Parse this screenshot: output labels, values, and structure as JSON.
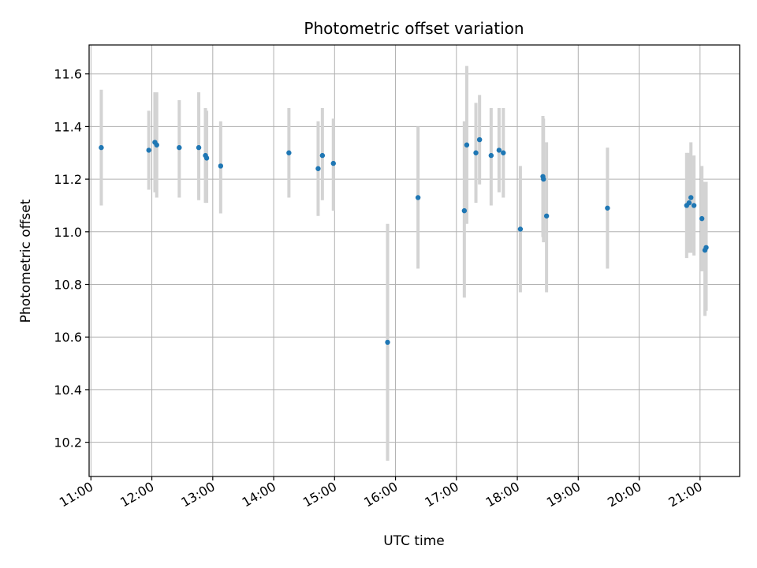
{
  "chart_data": {
    "type": "scatter",
    "title": "Photometric offset variation",
    "xlabel": "UTC time",
    "ylabel": "Photometric offset",
    "x_unit": "hour",
    "xlim": [
      10.97,
      21.65
    ],
    "ylim": [
      10.07,
      11.71
    ],
    "grid": true,
    "x_ticks": [
      {
        "value": 11,
        "label": "11:00"
      },
      {
        "value": 12,
        "label": "12:00"
      },
      {
        "value": 13,
        "label": "13:00"
      },
      {
        "value": 14,
        "label": "14:00"
      },
      {
        "value": 15,
        "label": "15:00"
      },
      {
        "value": 16,
        "label": "16:00"
      },
      {
        "value": 17,
        "label": "17:00"
      },
      {
        "value": 18,
        "label": "18:00"
      },
      {
        "value": 19,
        "label": "19:00"
      },
      {
        "value": 20,
        "label": "20:00"
      },
      {
        "value": 21,
        "label": "21:00"
      }
    ],
    "y_ticks": [
      {
        "value": 10.2,
        "label": "10.2"
      },
      {
        "value": 10.4,
        "label": "10.4"
      },
      {
        "value": 10.6,
        "label": "10.6"
      },
      {
        "value": 10.8,
        "label": "10.8"
      },
      {
        "value": 11.0,
        "label": "11.0"
      },
      {
        "value": 11.2,
        "label": "11.2"
      },
      {
        "value": 11.4,
        "label": "11.4"
      },
      {
        "value": 11.6,
        "label": "11.6"
      }
    ],
    "colors": {
      "point": "#1f77b4",
      "error_bar": "#d3d3d3",
      "grid": "#b0b0b0"
    },
    "points": [
      {
        "x": 11.17,
        "y": 11.32,
        "low": 11.1,
        "high": 11.54
      },
      {
        "x": 11.95,
        "y": 11.31,
        "low": 11.16,
        "high": 11.46
      },
      {
        "x": 12.05,
        "y": 11.34,
        "low": 11.15,
        "high": 11.53
      },
      {
        "x": 12.08,
        "y": 11.33,
        "low": 11.13,
        "high": 11.53
      },
      {
        "x": 12.45,
        "y": 11.32,
        "low": 11.13,
        "high": 11.5
      },
      {
        "x": 12.77,
        "y": 11.32,
        "low": 11.12,
        "high": 11.53
      },
      {
        "x": 12.88,
        "y": 11.29,
        "low": 11.11,
        "high": 11.47
      },
      {
        "x": 12.9,
        "y": 11.28,
        "low": 11.11,
        "high": 11.46
      },
      {
        "x": 13.13,
        "y": 11.25,
        "low": 11.07,
        "high": 11.42
      },
      {
        "x": 14.25,
        "y": 11.3,
        "low": 11.13,
        "high": 11.47
      },
      {
        "x": 14.73,
        "y": 11.24,
        "low": 11.06,
        "high": 11.42
      },
      {
        "x": 14.8,
        "y": 11.29,
        "low": 11.12,
        "high": 11.47
      },
      {
        "x": 14.98,
        "y": 11.26,
        "low": 11.08,
        "high": 11.43
      },
      {
        "x": 15.87,
        "y": 10.58,
        "low": 10.13,
        "high": 11.03
      },
      {
        "x": 16.37,
        "y": 11.13,
        "low": 10.86,
        "high": 11.4
      },
      {
        "x": 17.13,
        "y": 11.08,
        "low": 10.75,
        "high": 11.42
      },
      {
        "x": 17.17,
        "y": 11.33,
        "low": 11.03,
        "high": 11.63
      },
      {
        "x": 17.32,
        "y": 11.3,
        "low": 11.11,
        "high": 11.49
      },
      {
        "x": 17.38,
        "y": 11.35,
        "low": 11.18,
        "high": 11.52
      },
      {
        "x": 17.57,
        "y": 11.29,
        "low": 11.1,
        "high": 11.47
      },
      {
        "x": 17.7,
        "y": 11.31,
        "low": 11.15,
        "high": 11.47
      },
      {
        "x": 17.77,
        "y": 11.3,
        "low": 11.13,
        "high": 11.47
      },
      {
        "x": 18.05,
        "y": 11.01,
        "low": 10.77,
        "high": 11.25
      },
      {
        "x": 18.42,
        "y": 11.21,
        "low": 10.98,
        "high": 11.44
      },
      {
        "x": 18.43,
        "y": 11.2,
        "low": 10.96,
        "high": 11.43
      },
      {
        "x": 18.48,
        "y": 11.06,
        "low": 10.77,
        "high": 11.34
      },
      {
        "x": 19.48,
        "y": 11.09,
        "low": 10.86,
        "high": 11.32
      },
      {
        "x": 20.78,
        "y": 11.1,
        "low": 10.9,
        "high": 11.3
      },
      {
        "x": 20.82,
        "y": 11.11,
        "low": 10.92,
        "high": 11.3
      },
      {
        "x": 20.85,
        "y": 11.13,
        "low": 10.92,
        "high": 11.34
      },
      {
        "x": 20.9,
        "y": 11.1,
        "low": 10.91,
        "high": 11.29
      },
      {
        "x": 21.03,
        "y": 11.05,
        "low": 10.85,
        "high": 11.25
      },
      {
        "x": 21.08,
        "y": 10.93,
        "low": 10.68,
        "high": 11.19
      },
      {
        "x": 21.1,
        "y": 10.94,
        "low": 10.7,
        "high": 11.19
      }
    ]
  }
}
